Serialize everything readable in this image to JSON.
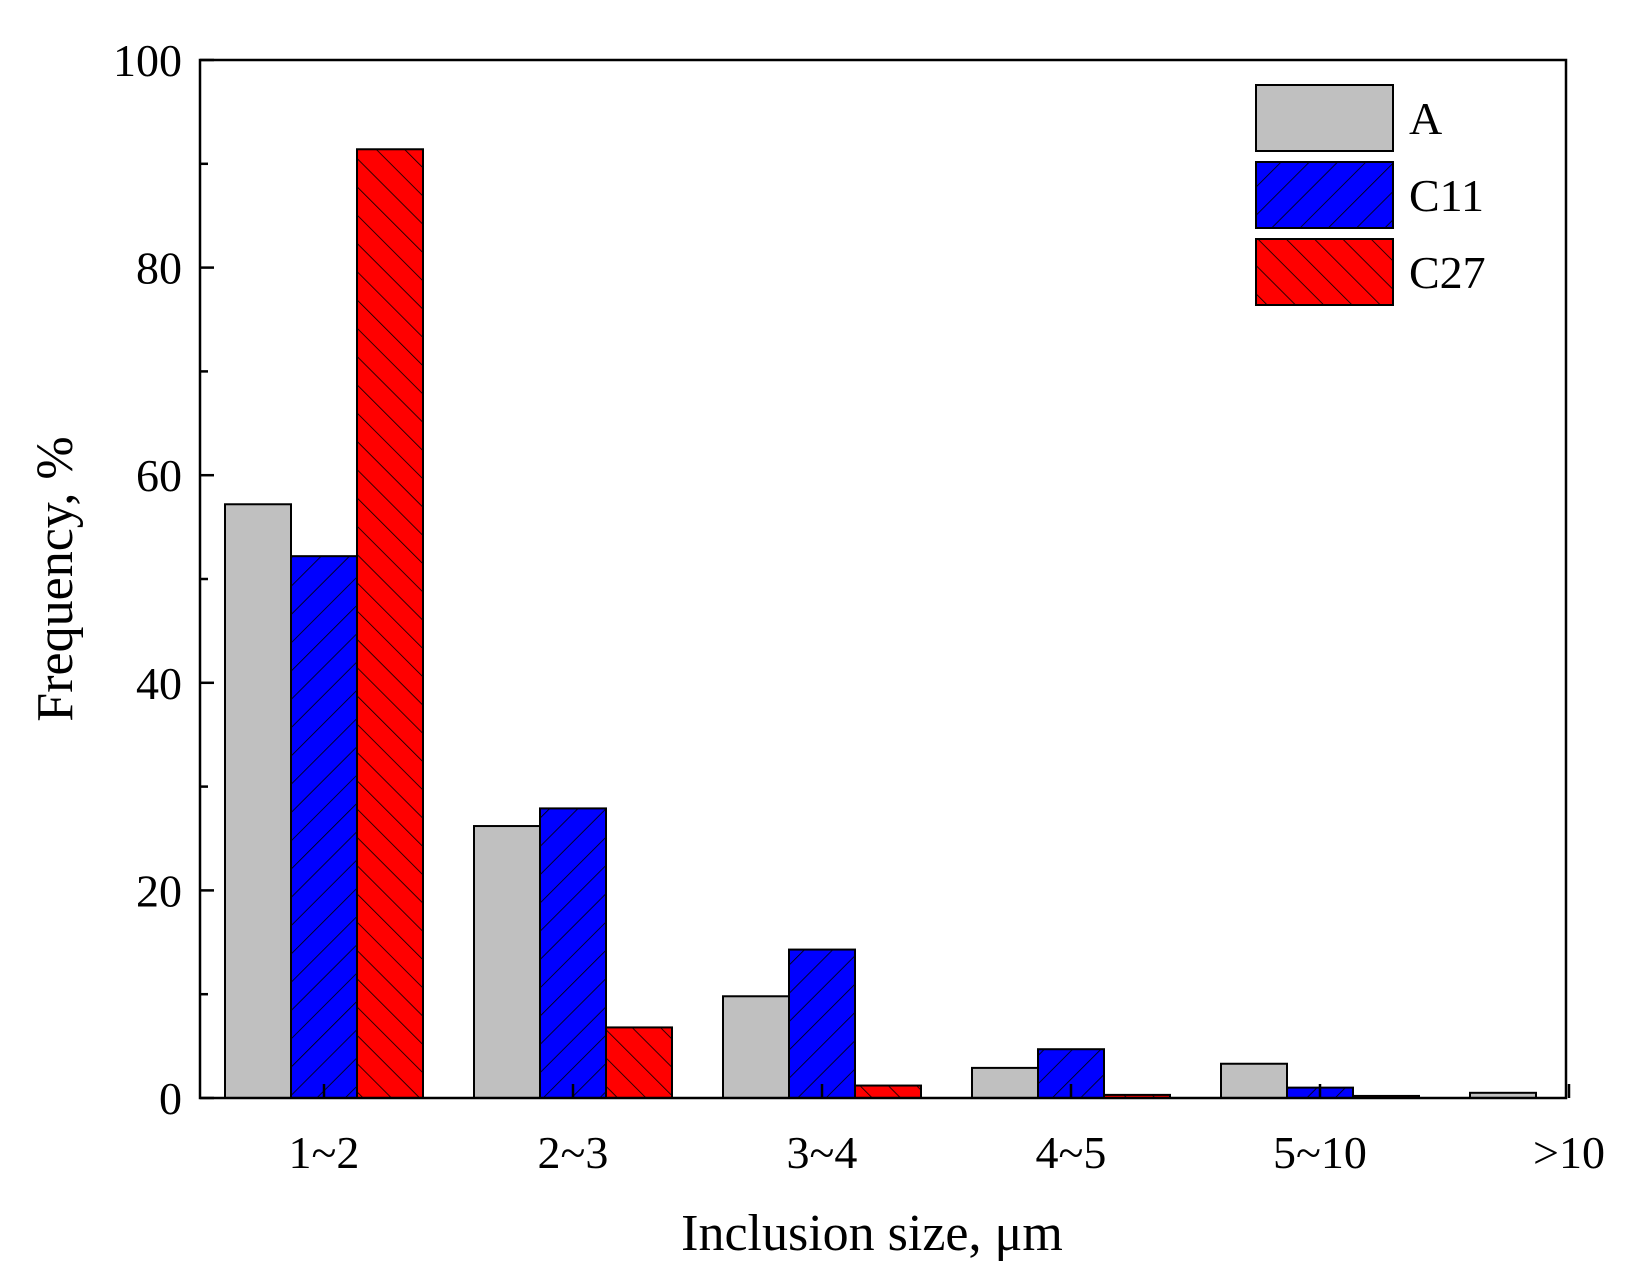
{
  "chart_data": {
    "type": "bar",
    "title": "",
    "xlabel": "Inclusion size, μm",
    "ylabel": "Frequency, %",
    "ylim": [
      0,
      100
    ],
    "yticks": [
      0,
      20,
      40,
      60,
      80,
      100
    ],
    "categories": [
      "1~2",
      "2~3",
      "3~4",
      "4~5",
      "5~10",
      ">10"
    ],
    "series": [
      {
        "name": "A",
        "values": [
          57.2,
          26.2,
          9.8,
          2.9,
          3.3,
          0.5
        ],
        "color": "#c0c0c0",
        "pattern": "none"
      },
      {
        "name": "C11",
        "values": [
          52.2,
          27.9,
          14.3,
          4.7,
          1.0,
          0.0
        ],
        "color": "#0000ff",
        "pattern": "forward-diagonal"
      },
      {
        "name": "C27",
        "values": [
          91.4,
          6.8,
          1.2,
          0.3,
          0.2,
          0.0
        ],
        "color": "#ff0000",
        "pattern": "back-diagonal"
      }
    ],
    "legend_position": "top-right"
  }
}
